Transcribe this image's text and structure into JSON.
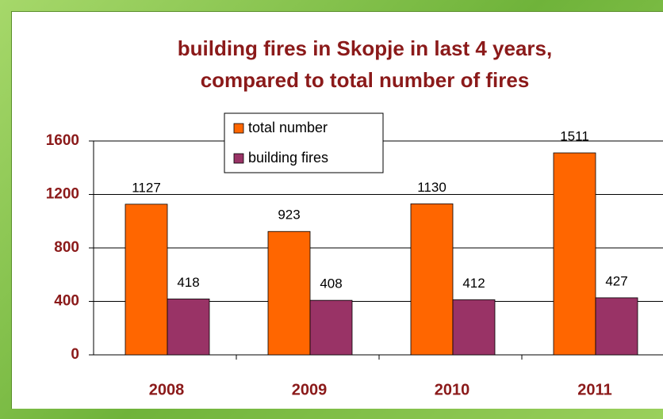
{
  "chart_data": {
    "type": "bar",
    "title": [
      "building fires in Skopje in last 4 years,",
      "compared to total number of fires"
    ],
    "categories": [
      "2008",
      "2009",
      "2010",
      "2011"
    ],
    "series": [
      {
        "name": "total number",
        "color": "#ff6600",
        "values": [
          1127,
          923,
          1130,
          1511
        ]
      },
      {
        "name": "building fires",
        "color": "#993366",
        "values": [
          418,
          408,
          412,
          427
        ]
      }
    ],
    "ylim": [
      0,
      1600
    ],
    "yticks": [
      0,
      400,
      800,
      1200,
      1600
    ],
    "grid": true
  }
}
